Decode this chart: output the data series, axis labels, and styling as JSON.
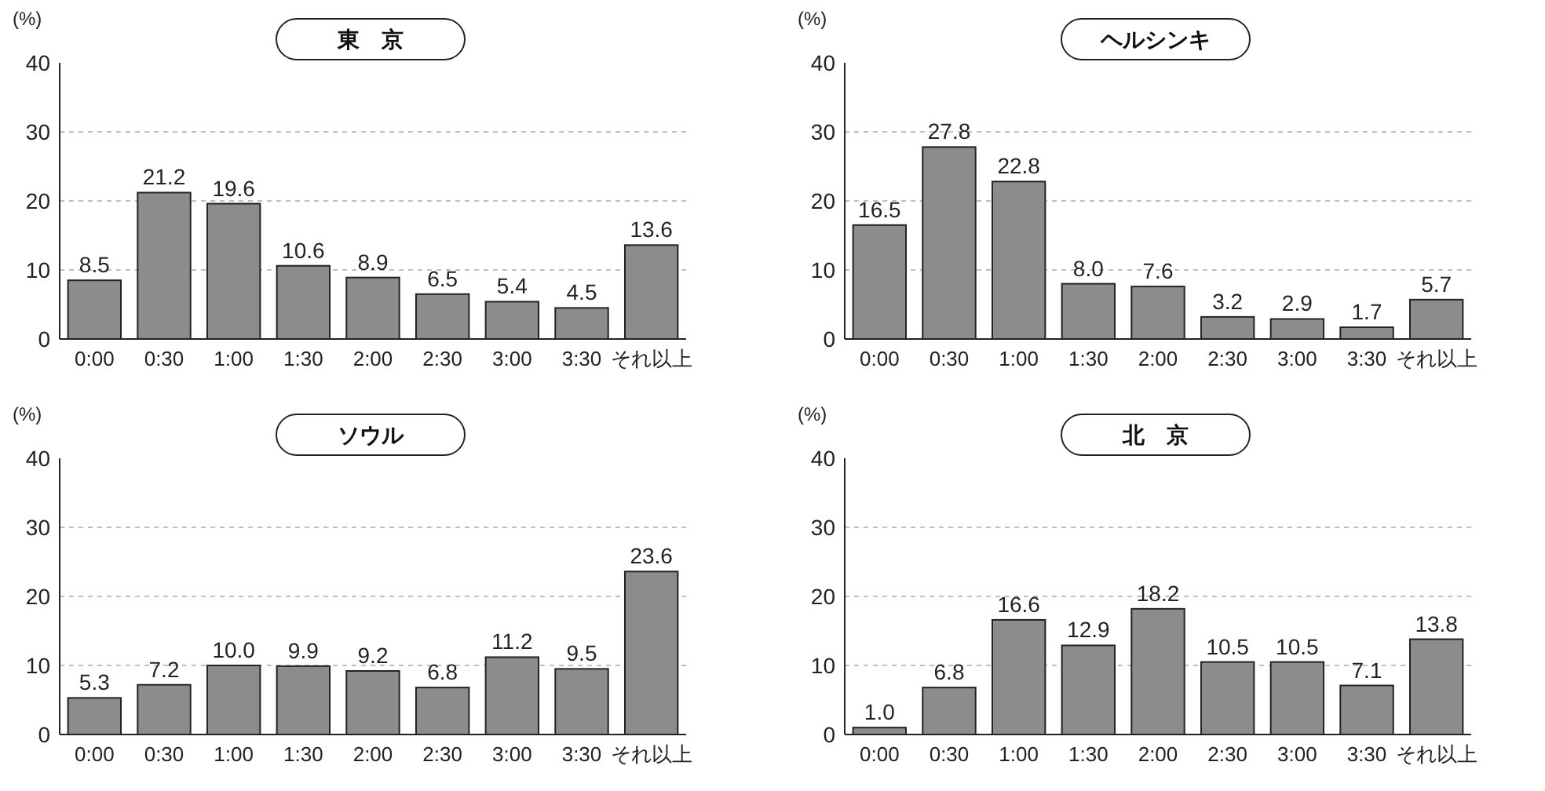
{
  "chart_data": [
    {
      "type": "bar",
      "title": "東　京",
      "ylabel": "(%)",
      "categories": [
        "0:00",
        "0:30",
        "1:00",
        "1:30",
        "2:00",
        "2:30",
        "3:00",
        "3:30",
        "それ以上"
      ],
      "values": [
        8.5,
        21.2,
        19.6,
        10.6,
        8.9,
        6.5,
        5.4,
        4.5,
        13.6
      ],
      "value_labels": [
        "8.5",
        "21.2",
        "19.6",
        "10.6",
        "8.9",
        "6.5",
        "5.4",
        "4.5",
        "13.6"
      ],
      "color": "#8c8c8c",
      "ylim": [
        0,
        40
      ],
      "yticks": [
        0,
        10,
        20,
        30,
        40
      ],
      "grid": "y"
    },
    {
      "type": "bar",
      "title": "ヘルシンキ",
      "ylabel": "(%)",
      "categories": [
        "0:00",
        "0:30",
        "1:00",
        "1:30",
        "2:00",
        "2:30",
        "3:00",
        "3:30",
        "それ以上"
      ],
      "values": [
        16.5,
        27.8,
        22.8,
        8.0,
        7.6,
        3.2,
        2.9,
        1.7,
        5.7
      ],
      "value_labels": [
        "16.5",
        "27.8",
        "22.8",
        "8.0",
        "7.6",
        "3.2",
        "2.9",
        "1.7",
        "5.7"
      ],
      "color": "#8c8c8c",
      "ylim": [
        0,
        40
      ],
      "yticks": [
        0,
        10,
        20,
        30,
        40
      ],
      "grid": "y"
    },
    {
      "type": "bar",
      "title": "ソウル",
      "ylabel": "(%)",
      "categories": [
        "0:00",
        "0:30",
        "1:00",
        "1:30",
        "2:00",
        "2:30",
        "3:00",
        "3:30",
        "それ以上"
      ],
      "values": [
        5.3,
        7.2,
        10.0,
        9.9,
        9.2,
        6.8,
        11.2,
        9.5,
        23.6
      ],
      "value_labels": [
        "5.3",
        "7.2",
        "10.0",
        "9.9",
        "9.2",
        "6.8",
        "11.2",
        "9.5",
        "23.6"
      ],
      "color": "#8c8c8c",
      "ylim": [
        0,
        40
      ],
      "yticks": [
        0,
        10,
        20,
        30,
        40
      ],
      "grid": "y"
    },
    {
      "type": "bar",
      "title": "北　京",
      "ylabel": "(%)",
      "categories": [
        "0:00",
        "0:30",
        "1:00",
        "1:30",
        "2:00",
        "2:30",
        "3:00",
        "3:30",
        "それ以上"
      ],
      "values": [
        1.0,
        6.8,
        16.6,
        12.9,
        18.2,
        10.5,
        10.5,
        7.1,
        13.8
      ],
      "value_labels": [
        "1.0",
        "6.8",
        "16.6",
        "12.9",
        "18.2",
        "10.5",
        "10.5",
        "7.1",
        "13.8"
      ],
      "color": "#8c8c8c",
      "ylim": [
        0,
        40
      ],
      "yticks": [
        0,
        10,
        20,
        30,
        40
      ],
      "grid": "y"
    }
  ]
}
